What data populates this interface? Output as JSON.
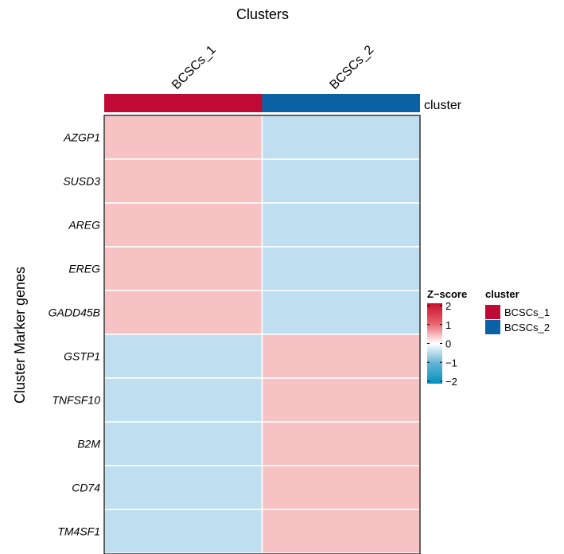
{
  "chart_data": {
    "type": "heatmap",
    "title": "Clusters",
    "xlabel": "",
    "ylabel": "Cluster Marker genes",
    "columns": [
      "BCSCs_1",
      "BCSCs_2"
    ],
    "rows": [
      "AZGP1",
      "SUSD3",
      "AREG",
      "EREG",
      "GADD45B",
      "GSTP1",
      "TNFSF10",
      "B2M",
      "CD74",
      "TM4SF1"
    ],
    "values": [
      [
        0.71,
        -0.71
      ],
      [
        0.71,
        -0.71
      ],
      [
        0.71,
        -0.71
      ],
      [
        0.71,
        -0.71
      ],
      [
        0.71,
        -0.71
      ],
      [
        -0.71,
        0.71
      ],
      [
        -0.71,
        0.71
      ],
      [
        -0.71,
        0.71
      ],
      [
        -0.71,
        0.71
      ],
      [
        -0.71,
        0.71
      ]
    ],
    "annotation": {
      "label": "cluster",
      "groups": [
        "BCSCs_1",
        "BCSCs_2"
      ],
      "colors": {
        "BCSCs_1": "#BE0A34",
        "BCSCs_2": "#0A62A4"
      }
    },
    "colorbar": {
      "title": "Z−score",
      "range": [
        -2,
        2
      ],
      "ticks": [
        2,
        1,
        0,
        -1,
        -2
      ],
      "tick_labels": [
        "2",
        "1",
        "0",
        "−1",
        "−2"
      ],
      "low_color": "#0092BE",
      "mid_color": "#FFFFFF",
      "high_color": "#C8102E"
    },
    "legend_title": "cluster",
    "grid": false
  }
}
